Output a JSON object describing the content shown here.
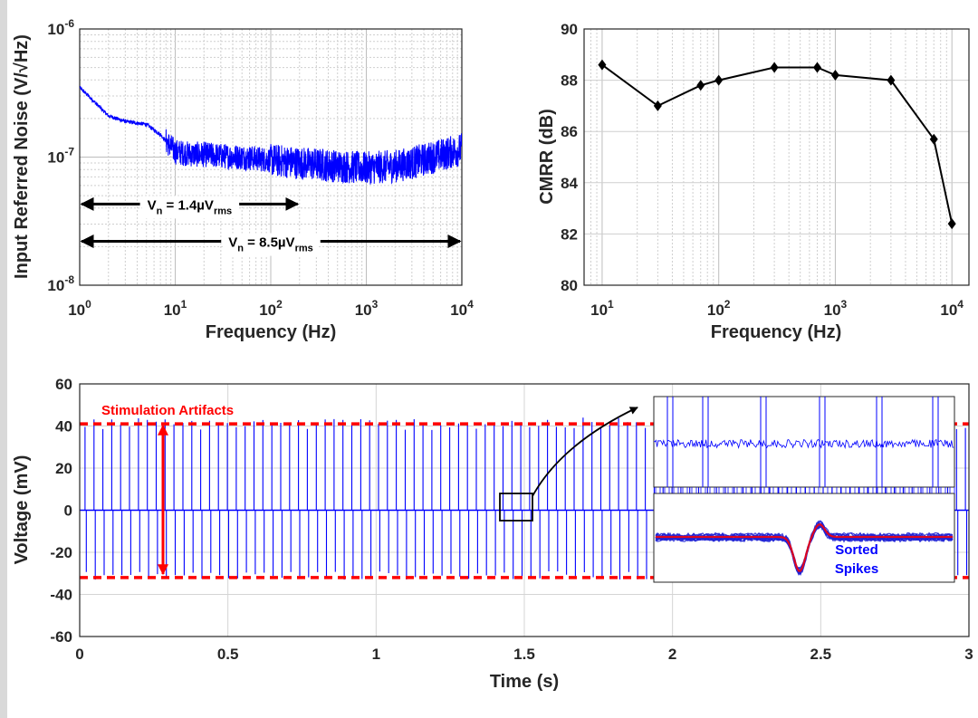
{
  "chart_data": [
    {
      "id": "noise",
      "type": "line",
      "xlabel": "Frequency (Hz)",
      "ylabel": "Input Referred Noise (V/√Hz)",
      "xscale": "log",
      "yscale": "log",
      "xlim": [
        1,
        10000
      ],
      "ylim": [
        1e-08,
        1e-06
      ],
      "xticks": [
        {
          "value": 1,
          "base": "10",
          "exp": "0"
        },
        {
          "value": 10,
          "base": "10",
          "exp": "1"
        },
        {
          "value": 100,
          "base": "10",
          "exp": "2"
        },
        {
          "value": 1000,
          "base": "10",
          "exp": "3"
        },
        {
          "value": 10000,
          "base": "10",
          "exp": "4"
        }
      ],
      "yticks": [
        {
          "value": 1e-08,
          "base": "10",
          "exp": "-8"
        },
        {
          "value": 1e-07,
          "base": "10",
          "exp": "-7"
        },
        {
          "value": 1e-06,
          "base": "10",
          "exp": "-6"
        }
      ],
      "grid": true,
      "series": [
        {
          "color": "#0000ff",
          "x": [
            1,
            1.5,
            2,
            3,
            5,
            7,
            10,
            15,
            20,
            30,
            50,
            100,
            200,
            500,
            1000,
            2000,
            3000,
            5000,
            10000
          ],
          "y": [
            3.5e-07,
            2.6e-07,
            2.1e-07,
            1.9e-07,
            1.8e-07,
            1.5e-07,
            1.1e-07,
            1.05e-07,
            1.05e-07,
            1.02e-07,
            1e-07,
            9.5e-08,
            9e-08,
            8.5e-08,
            8.2e-08,
            8.5e-08,
            9e-08,
            1e-07,
            1.15e-07
          ]
        }
      ],
      "annotations": [
        {
          "main": "V",
          "sub1": "n",
          "mid": " = 1.4µV",
          "sub2": "rms",
          "x_from": 1,
          "x_to": 200,
          "y": 4.3e-08
        },
        {
          "main": "V",
          "sub1": "n",
          "mid": " = 8.5µV",
          "sub2": "rms",
          "x_from": 1,
          "x_to": 10000,
          "y": 2.2e-08
        }
      ]
    },
    {
      "id": "cmrr",
      "type": "line",
      "xlabel": "Frequency (Hz)",
      "ylabel": "CMRR (dB)",
      "xscale": "log",
      "xlim": [
        7,
        14000
      ],
      "ylim": [
        80,
        90
      ],
      "xticks": [
        {
          "value": 10,
          "base": "10",
          "exp": "1"
        },
        {
          "value": 100,
          "base": "10",
          "exp": "2"
        },
        {
          "value": 1000,
          "base": "10",
          "exp": "3"
        },
        {
          "value": 10000,
          "base": "10",
          "exp": "4"
        }
      ],
      "yticks": [
        80,
        82,
        84,
        86,
        88,
        90
      ],
      "grid": true,
      "series": [
        {
          "color": "#000000",
          "marker": "diamond",
          "x": [
            10,
            30,
            70,
            100,
            300,
            700,
            1000,
            3000,
            7000,
            10000
          ],
          "y": [
            88.6,
            87.0,
            87.8,
            88.0,
            88.5,
            88.5,
            88.2,
            88.0,
            85.7,
            82.4
          ]
        }
      ]
    },
    {
      "id": "voltage",
      "type": "line",
      "xlabel": "Time (s)",
      "ylabel": "Voltage (mV)",
      "xlim": [
        0,
        3
      ],
      "ylim": [
        -60,
        60
      ],
      "xticks": [
        0,
        0.5,
        1,
        1.5,
        2,
        2.5,
        3
      ],
      "yticks": [
        -60,
        -40,
        -20,
        0,
        20,
        40,
        60
      ],
      "grid": true,
      "series": [
        {
          "color": "#0000ff",
          "artifact_interval_s": 0.03,
          "artifact_peak_mV": [
            41,
            -31
          ],
          "baseline_mV": 0
        }
      ],
      "reference_lines": [
        {
          "y": 41,
          "color": "#ff0000",
          "style": "dashed"
        },
        {
          "y": -32,
          "color": "#ff0000",
          "style": "dashed"
        }
      ],
      "annotations": [
        {
          "text": "Stimulation Artifacts",
          "color": "#ff0000"
        }
      ],
      "insets": [
        {
          "id": "zoom",
          "source_x": [
            1.43,
            1.54
          ],
          "source_y": [
            -5,
            5
          ]
        },
        {
          "id": "spikes",
          "label_lines": [
            "Sorted",
            "Spikes"
          ],
          "label_color": "#0000ff",
          "mean_color": "#ff0000"
        }
      ]
    }
  ]
}
